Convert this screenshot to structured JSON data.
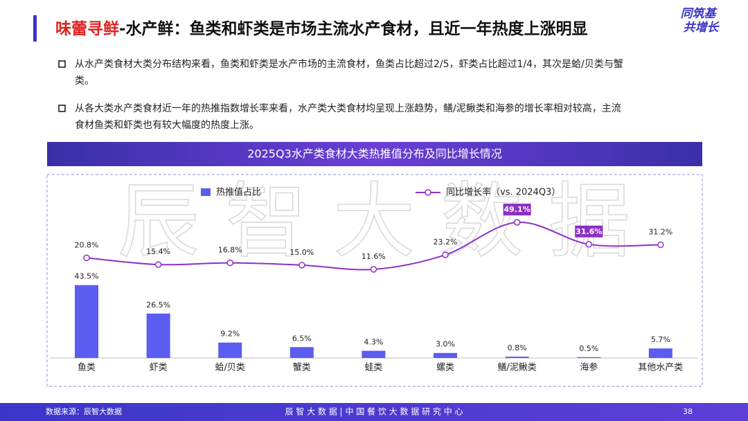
{
  "header": {
    "title_highlight": "味蕾寻鲜",
    "title": "-水产鲜：鱼类和虾类是市场主流水产食材，且近一年热度上涨明显",
    "logo": [
      "同筑基",
      "共增长"
    ]
  },
  "bullets": [
    "从水产类食材大类分布结构来看，鱼类和虾类是水产市场的主流食材，鱼类占比超过2/5，虾类占比超过1/4，其次是蛤/贝类与蟹",
    "类。",
    "从各大类水产类食材近一年的热推指数增长率来看，水产类大类食材均呈现上涨趋势，鳝/泥鳅类和海参的增长率相对较高，主流",
    "食材鱼类和虾类也有较大幅度的热度上涨。"
  ],
  "watermark": "辰 智 大 数 据",
  "chart_data": {
    "type": "combo",
    "title": "2025Q3水产类食材大类热推值分布及同比增长情况",
    "categories": [
      "鱼类",
      "虾类",
      "蛤/贝类",
      "蟹类",
      "蛙类",
      "螺类",
      "鳝/泥鳅类",
      "海参",
      "其他水产类"
    ],
    "series": [
      {
        "name": "热推值占比",
        "type": "bar",
        "color": "#5b5cf0",
        "values": [
          43.5,
          26.5,
          9.2,
          6.5,
          4.3,
          3.0,
          0.8,
          0.5,
          5.7
        ],
        "value_labels": [
          "43.5%",
          "26.5%",
          "9.2%",
          "6.5%",
          "4.3%",
          "3.0%",
          "0.8%",
          "0.5%",
          "5.7%"
        ]
      },
      {
        "name": "同比增长率（vs. 2024Q3）",
        "type": "line",
        "color": "#8e2fc8",
        "values": [
          20.8,
          15.4,
          16.8,
          15.0,
          11.6,
          23.2,
          49.1,
          31.6,
          31.2
        ],
        "value_labels": [
          "20.8%",
          "15.4%",
          "16.8%",
          "15.0%",
          "11.6%",
          "23.2%",
          "49.1%",
          "31.6%",
          "31.2%"
        ],
        "highlight": [
          6,
          7
        ]
      }
    ]
  },
  "footer": {
    "source": "数据来源：辰智大数据",
    "center": "辰 智 大 数 据 | 中 国 餐 饮 大 数 据 研 究 中 心",
    "page": "38"
  }
}
